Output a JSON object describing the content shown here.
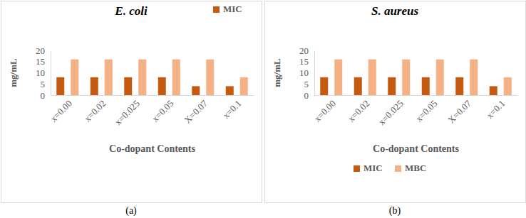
{
  "chart_data": [
    {
      "type": "bar",
      "title": "E. coli",
      "caption": "(a)",
      "x_label": "Co-dopant Contents",
      "y_label": "mg/mL",
      "categories": [
        "x=0.00",
        "x=0.02",
        "x=0.025",
        "x=0.05",
        "X=0.07",
        "x=0.1"
      ],
      "series": [
        {
          "name": "MIC",
          "color": "#c55a11",
          "values": [
            8,
            8,
            8,
            8,
            4,
            4
          ]
        },
        {
          "color": "#f4b183",
          "values": [
            16,
            16,
            16,
            16,
            16,
            8
          ]
        }
      ],
      "ylim": [
        0,
        20
      ],
      "yticks": [
        0,
        5,
        10,
        15,
        20
      ],
      "legend": "top-right"
    },
    {
      "type": "bar",
      "title": "S. aureus",
      "caption": "(b)",
      "x_label": "Co-dopant Contents",
      "y_label": "mg/mL",
      "categories": [
        "x=0.00",
        "x=0.02",
        "x=0.025",
        "x=0.05",
        "X=0.07",
        "x=0.1"
      ],
      "series": [
        {
          "name": "MIC",
          "color": "#c55a11",
          "values": [
            8,
            8,
            8,
            8,
            8,
            4
          ]
        },
        {
          "name": "MBC",
          "color": "#f4b183",
          "values": [
            16,
            16,
            16,
            16,
            16,
            8
          ]
        }
      ],
      "ylim": [
        0,
        20
      ],
      "yticks": [
        0,
        5,
        10,
        15,
        20
      ],
      "legend": "bottom"
    }
  ]
}
